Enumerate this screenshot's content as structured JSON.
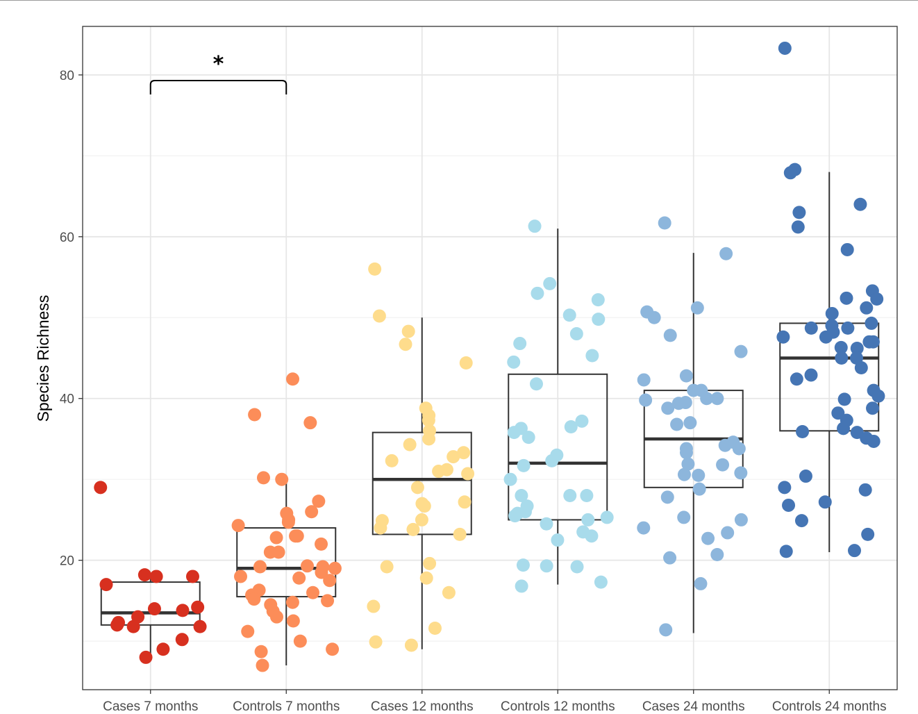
{
  "chart_data": {
    "type": "box",
    "title": "",
    "xlabel": "",
    "ylabel": "Species Richness",
    "ylim": [
      4,
      86
    ],
    "yticks": [
      20,
      40,
      60,
      80
    ],
    "grid": true,
    "categories": [
      "Cases 7 months",
      "Controls 7 months",
      "Cases 12 months",
      "Controls 12 months",
      "Cases 24 months",
      "Controls 24 months"
    ],
    "colors": [
      "#d7301f",
      "#fc8d59",
      "#fedc8c",
      "#a8dbeb",
      "#8db6dc",
      "#4575b4"
    ],
    "boxes": [
      {
        "category": "Cases 7 months",
        "min": 8,
        "q1": 12,
        "median": 13.5,
        "q3": 17.3,
        "max": 18
      },
      {
        "category": "Controls 7 months",
        "min": 7,
        "q1": 15.5,
        "median": 19,
        "q3": 24,
        "max": 30
      },
      {
        "category": "Cases 12 months",
        "min": 9,
        "q1": 23.2,
        "median": 30,
        "q3": 35.8,
        "max": 50
      },
      {
        "category": "Controls 12 months",
        "min": 17,
        "q1": 25,
        "median": 32,
        "q3": 43,
        "max": 61
      },
      {
        "category": "Cases 24 months",
        "min": 11,
        "q1": 29,
        "median": 35,
        "q3": 41,
        "max": 58
      },
      {
        "category": "Controls 24 months",
        "min": 21,
        "q1": 36,
        "median": 45,
        "q3": 49.3,
        "max": 68
      }
    ],
    "points": [
      [
        29,
        18,
        17,
        18,
        13,
        8,
        9,
        12,
        11.8,
        14,
        14.2,
        13.8,
        12.3,
        11.8,
        10.2,
        18.2
      ],
      [
        38,
        37,
        42.4,
        30,
        30.2,
        27.3,
        26,
        25.8,
        25,
        24.7,
        24.3,
        23,
        23,
        22.8,
        22,
        21,
        21,
        19.2,
        19,
        19.3,
        19.2,
        18.5,
        18,
        17.8,
        17.5,
        16.3,
        16,
        15.7,
        15,
        15.2,
        14.5,
        14.8,
        13.7,
        13,
        12.5,
        11.2,
        10,
        9,
        8.7,
        7
      ],
      [
        56,
        50.2,
        48.3,
        46.7,
        44.4,
        38.8,
        37.9,
        37.3,
        36,
        35,
        34.3,
        33.3,
        32.8,
        32.3,
        31.2,
        31,
        30.7,
        29,
        27.2,
        27,
        26.7,
        25,
        24.9,
        24,
        23.8,
        23.2,
        19.6,
        19.2,
        17.8,
        16,
        14.3,
        11.6,
        9.9,
        9.5
      ],
      [
        61.3,
        54.2,
        53,
        52.2,
        50.3,
        49.8,
        48,
        46.8,
        45.3,
        44.5,
        41.8,
        37.2,
        36.5,
        36.3,
        35.8,
        35.2,
        33,
        32.3,
        31.7,
        30,
        28,
        28,
        28,
        26.7,
        26,
        25.8,
        25.3,
        25.5,
        25,
        24.5,
        23.5,
        23,
        22.5,
        19.4,
        19.3,
        19.2,
        17.3,
        16.8
      ],
      [
        61.7,
        57.9,
        51.2,
        50.7,
        50,
        47.8,
        45.8,
        42.8,
        42.3,
        41,
        41,
        40,
        40,
        39.8,
        39.5,
        39.4,
        38.8,
        37,
        36.8,
        34.6,
        34.2,
        33.8,
        33.8,
        33.3,
        31.8,
        31.9,
        30.8,
        30.6,
        30.5,
        28.8,
        27.8,
        25.3,
        25,
        24,
        23.4,
        22.7,
        20.7,
        20.3,
        17.1,
        11.4
      ],
      [
        83.3,
        68.3,
        67.9,
        64,
        63,
        61.2,
        58.4,
        53.3,
        52.4,
        52.3,
        51.2,
        50.5,
        49.3,
        49,
        48.7,
        48.7,
        48.2,
        47.6,
        47.6,
        47,
        47,
        46.3,
        46.2,
        45,
        45,
        43.8,
        42.9,
        42.4,
        41,
        40.3,
        39.9,
        38.8,
        38.2,
        37.3,
        36.3,
        35.9,
        35.8,
        35.1,
        34.7,
        30.4,
        29,
        28.7,
        27.2,
        26.8,
        24.9,
        23.2,
        21.2,
        21.1
      ]
    ],
    "significance": {
      "from": "Cases 7 months",
      "to": "Controls 7 months",
      "label": "*",
      "y": 79.3
    }
  }
}
